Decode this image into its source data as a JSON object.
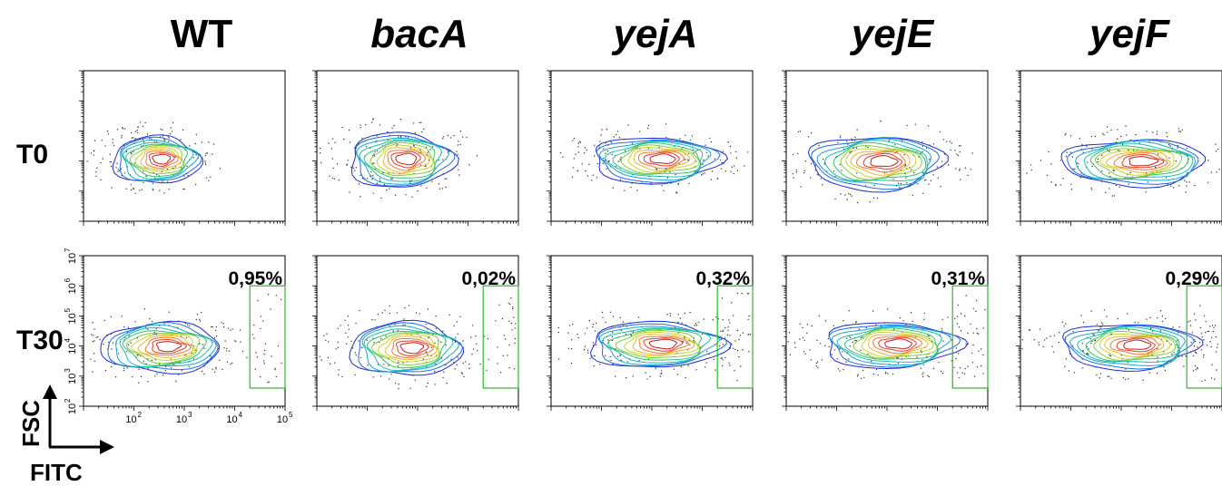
{
  "columns": [
    {
      "label": "WT",
      "italic": false
    },
    {
      "label": "bacA",
      "italic": true
    },
    {
      "label": "yejA",
      "italic": true
    },
    {
      "label": "yejE",
      "italic": true
    },
    {
      "label": "yejF",
      "italic": true
    }
  ],
  "rows": [
    {
      "label": "T0",
      "gated": false
    },
    {
      "label": "T30",
      "gated": true
    }
  ],
  "axes": {
    "y_name": "FSC",
    "x_name": "FITC",
    "y_ticks": [
      {
        "base": "10",
        "exp": "2"
      },
      {
        "base": "10",
        "exp": "3"
      },
      {
        "base": "10",
        "exp": "4"
      },
      {
        "base": "10",
        "exp": "5"
      },
      {
        "base": "10",
        "exp": "6"
      },
      {
        "base": "10",
        "exp": "7"
      }
    ],
    "x_ticks": [
      {
        "base": "10",
        "exp": "2"
      },
      {
        "base": "10",
        "exp": "3"
      },
      {
        "base": "10",
        "exp": "4"
      },
      {
        "base": "10",
        "exp": "5"
      }
    ]
  },
  "chart_data": {
    "type": "contour",
    "x_axis": "FITC",
    "y_axis": "FSC",
    "x_scale": "log",
    "y_scale": "log",
    "xlim": [
      10,
      100000
    ],
    "ylim": [
      100,
      10000000
    ],
    "gate_xlim": [
      20000,
      100000
    ],
    "gate_ylim": [
      400,
      1000000
    ],
    "contour_colors": [
      "#1c2bd9",
      "#1f6fe0",
      "#15a6d6",
      "#17c0b0",
      "#30c46a",
      "#7fd03a",
      "#c8d52a",
      "#f0b42a",
      "#f07a2a",
      "#e83a2a",
      "#c81818"
    ],
    "series": [
      {
        "column": "WT",
        "time": "T0",
        "center": [
          250,
          12000
        ],
        "spread": [
          0.55,
          0.62
        ],
        "gate_pct": null
      },
      {
        "column": "bacA",
        "time": "T0",
        "center": [
          400,
          12000
        ],
        "spread": [
          0.65,
          0.72
        ],
        "gate_pct": null
      },
      {
        "column": "yejA",
        "time": "T0",
        "center": [
          1000,
          12000
        ],
        "spread": [
          0.8,
          0.6
        ],
        "gate_pct": null
      },
      {
        "column": "yejE",
        "time": "T0",
        "center": [
          500,
          10000
        ],
        "spread": [
          0.85,
          0.7
        ],
        "gate_pct": null
      },
      {
        "column": "yejF",
        "time": "T0",
        "center": [
          1500,
          10000
        ],
        "spread": [
          0.9,
          0.6
        ],
        "gate_pct": null
      },
      {
        "column": "WT",
        "time": "T30",
        "center": [
          300,
          10000
        ],
        "spread": [
          0.75,
          0.65
        ],
        "gate_pct": "0,95%"
      },
      {
        "column": "bacA",
        "time": "T30",
        "center": [
          500,
          9000
        ],
        "spread": [
          0.7,
          0.7
        ],
        "gate_pct": "0,02%"
      },
      {
        "column": "yejA",
        "time": "T30",
        "center": [
          1000,
          12000
        ],
        "spread": [
          0.85,
          0.6
        ],
        "gate_pct": "0,32%"
      },
      {
        "column": "yejE",
        "time": "T30",
        "center": [
          1000,
          12000
        ],
        "spread": [
          0.85,
          0.6
        ],
        "gate_pct": "0,31%"
      },
      {
        "column": "yejF",
        "time": "T30",
        "center": [
          1200,
          11000
        ],
        "spread": [
          0.85,
          0.6
        ],
        "gate_pct": "0,29%"
      }
    ]
  }
}
